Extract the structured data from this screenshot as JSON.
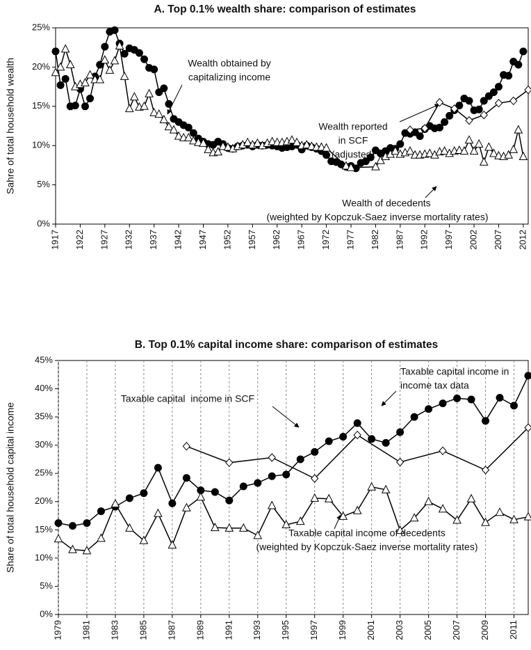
{
  "chart_data": [
    {
      "type": "line",
      "title": "A. Top 0.1% wealth share: comparison of estimates",
      "ylabel": "Sahre of total household wealth",
      "grid": false,
      "xlim": [
        1917,
        2013
      ],
      "xticks": [
        1917,
        1922,
        1927,
        1932,
        1937,
        1942,
        1947,
        1952,
        1957,
        1962,
        1967,
        1972,
        1977,
        1982,
        1987,
        1992,
        1997,
        2002,
        2007,
        2012
      ],
      "ylim": [
        0,
        25
      ],
      "yticks": [
        {
          "value": 0,
          "label": "0%"
        },
        {
          "value": 5,
          "label": "5%"
        },
        {
          "value": 10,
          "label": "10%"
        },
        {
          "value": 15,
          "label": "15%"
        },
        {
          "value": 20,
          "label": "20%"
        },
        {
          "value": 25,
          "label": "25%"
        }
      ],
      "annotations": [
        [
          "Wealth obtained by",
          "capitalizing income"
        ],
        [
          "Wealth reported",
          "in SCF",
          "(adjusted)"
        ],
        [
          "Wealth of decedents",
          "(weighted by Kopczuk-Saez inverse mortality rates)"
        ]
      ],
      "series": [
        {
          "marker": "circle",
          "color": "#000000",
          "x": [
            1917,
            1918,
            1919,
            1920,
            1921,
            1922,
            1923,
            1924,
            1925,
            1926,
            1927,
            1928,
            1929,
            1930,
            1931,
            1932,
            1933,
            1934,
            1935,
            1936,
            1937,
            1938,
            1939,
            1940,
            1941,
            1942,
            1943,
            1944,
            1945,
            1946,
            1947,
            1948,
            1949,
            1950,
            1951,
            1952,
            1953,
            1954,
            1955,
            1956,
            1957,
            1958,
            1959,
            1960,
            1961,
            1962,
            1963,
            1964,
            1965,
            1966,
            1967,
            1968,
            1969,
            1970,
            1971,
            1972,
            1973,
            1974,
            1975,
            1976,
            1977,
            1978,
            1979,
            1980,
            1981,
            1982,
            1983,
            1984,
            1985,
            1986,
            1987,
            1988,
            1989,
            1990,
            1991,
            1992,
            1993,
            1994,
            1995,
            1996,
            1997,
            1998,
            1999,
            2000,
            2001,
            2002,
            2003,
            2004,
            2005,
            2006,
            2007,
            2008,
            2009,
            2010,
            2011,
            2012
          ],
          "values": [
            22,
            17.7,
            18.5,
            15,
            15.1,
            17.2,
            15,
            16,
            18.8,
            20.3,
            22.6,
            24.5,
            24.7,
            23,
            21.7,
            22.4,
            22.2,
            21.8,
            21,
            19.9,
            19.7,
            16.8,
            17.3,
            15.3,
            13.4,
            13,
            12.6,
            12.3,
            11.6,
            10.9,
            10.5,
            10.2,
            10.1,
            10.5,
            10.2,
            9.7,
            9.6,
            9.9,
            10,
            10.1,
            9.9,
            10.1,
            10,
            10.1,
            10,
            9.9,
            9.7,
            9.8,
            9.9,
            10.1,
            9.5,
            10,
            9.8,
            9.6,
            9.3,
            8.8,
            8,
            7.9,
            7.6,
            7.3,
            7.4,
            7.1,
            7.8,
            8,
            8.5,
            9.4,
            9,
            9.3,
            9.7,
            9.6,
            10.2,
            11.6,
            11.5,
            11.7,
            11.2,
            12.1,
            12.5,
            12.2,
            12.3,
            13,
            13.8,
            14.5,
            15.1,
            16,
            15.7,
            14.5,
            14.6,
            15.7,
            16.3,
            16.8,
            17.5,
            19,
            18.9,
            20.7,
            20.3,
            22
          ]
        },
        {
          "marker": "triangle",
          "color": "#000000",
          "x": [
            1917,
            1918,
            1919,
            1920,
            1921,
            1922,
            1923,
            1924,
            1925,
            1926,
            1927,
            1928,
            1929,
            1930,
            1931,
            1932,
            1933,
            1934,
            1935,
            1936,
            1937,
            1938,
            1939,
            1940,
            1941,
            1942,
            1943,
            1944,
            1945,
            1946,
            1947,
            1948,
            1949,
            1950,
            1951,
            1952,
            1953,
            1954,
            1955,
            1956,
            1957,
            1958,
            1959,
            1960,
            1961,
            1962,
            1963,
            1964,
            1965,
            1966,
            1967,
            1968,
            1969,
            1970,
            1971,
            1972,
            1976,
            1977,
            1982,
            1983,
            1984,
            1985,
            1986,
            1987,
            1988,
            1989,
            1990,
            1991,
            1992,
            1993,
            1994,
            1995,
            1996,
            1997,
            1998,
            1999,
            2000,
            2001,
            2002,
            2003,
            2004,
            2005,
            2006,
            2007,
            2008,
            2009,
            2010,
            2011,
            2012
          ],
          "values": [
            19.3,
            20,
            22.3,
            20.3,
            17.5,
            17.8,
            18,
            19,
            18.4,
            18.4,
            20.9,
            19.6,
            20.8,
            22.7,
            18.8,
            14.7,
            16.2,
            14.9,
            15,
            16.6,
            14.2,
            14,
            13.3,
            12.4,
            12,
            11.2,
            11,
            11,
            10.6,
            10.4,
            10.3,
            9.5,
            9.1,
            9.2,
            9.9,
            9.8,
            9.6,
            9.9,
            10.1,
            10.4,
            10.1,
            10.3,
            10,
            10.3,
            10.5,
            10.4,
            10.4,
            10.5,
            10.7,
            10.4,
            10,
            10.1,
            9.9,
            9.8,
            9.8,
            9.7,
            7.4,
            7.2,
            7.3,
            8.1,
            8.6,
            8.9,
            9.3,
            8.9,
            9.1,
            9.3,
            8.8,
            8.8,
            8.9,
            9,
            8.8,
            9.2,
            9.3,
            9,
            9.3,
            9.4,
            9.3,
            10.7,
            9.3,
            10.2,
            7.9,
            9.8,
            9,
            8.7,
            8.6,
            8.8,
            9.5,
            12,
            8.6
          ]
        },
        {
          "marker": "diamond",
          "color": "#000000",
          "x": [
            1989,
            1992,
            1995,
            1998,
            2001,
            2004,
            2007,
            2010,
            2013
          ],
          "values": [
            12,
            12.2,
            15.5,
            14.7,
            13.2,
            13.9,
            15.4,
            15.7,
            17.1
          ]
        }
      ]
    },
    {
      "type": "line",
      "title": "B. Top 0.1% capital income share: comparison of estimates",
      "ylabel": "Share of total household capital income",
      "grid": "x",
      "xlim": [
        1979,
        2012
      ],
      "xticks": [
        1979,
        1981,
        1983,
        1985,
        1987,
        1989,
        1991,
        1993,
        1995,
        1997,
        1999,
        2001,
        2003,
        2005,
        2007,
        2009,
        2011
      ],
      "ylim": [
        0,
        45
      ],
      "yticks": [
        {
          "value": 0,
          "label": "0%"
        },
        {
          "value": 5,
          "label": "5%"
        },
        {
          "value": 10,
          "label": "10%"
        },
        {
          "value": 15,
          "label": "15%"
        },
        {
          "value": 20,
          "label": "20%"
        },
        {
          "value": 25,
          "label": "25%"
        },
        {
          "value": 30,
          "label": "30%"
        },
        {
          "value": 35,
          "label": "35%"
        },
        {
          "value": 40,
          "label": "40%"
        },
        {
          "value": 45,
          "label": "45%"
        }
      ],
      "annotations": [
        [
          "Taxable capital income in",
          "income tax data"
        ],
        [
          "Taxable capital  income in SCF"
        ],
        [
          "Taxable capital income of decedents",
          "(weighted by Kopczuk-Saez inverse mortality rates)"
        ]
      ],
      "series": [
        {
          "marker": "circle",
          "color": "#000000",
          "x": [
            1979,
            1980,
            1981,
            1982,
            1983,
            1984,
            1985,
            1986,
            1987,
            1988,
            1989,
            1990,
            1991,
            1992,
            1993,
            1994,
            1995,
            1996,
            1997,
            1998,
            1999,
            2000,
            2001,
            2002,
            2003,
            2004,
            2005,
            2006,
            2007,
            2008,
            2009,
            2010,
            2011,
            2012
          ],
          "values": [
            16.2,
            15.7,
            16.2,
            18.3,
            19.1,
            20.6,
            21.5,
            26,
            19.7,
            24.2,
            22,
            21.7,
            20.2,
            22.7,
            23.3,
            24.5,
            24.8,
            27.5,
            28.8,
            30.7,
            31.5,
            33.9,
            31.1,
            30.4,
            32.3,
            35,
            36.4,
            37.4,
            38.3,
            38.1,
            34.3,
            38.4,
            37,
            42.3
          ]
        },
        {
          "marker": "triangle",
          "color": "#000000",
          "x": [
            1979,
            1980,
            1981,
            1982,
            1983,
            1984,
            1985,
            1986,
            1987,
            1988,
            1989,
            1990,
            1991,
            1992,
            1993,
            1994,
            1995,
            1996,
            1997,
            1998,
            1999,
            2000,
            2001,
            2002,
            2003,
            2004,
            2005,
            2006,
            2007,
            2008,
            2009,
            2010,
            2011,
            2012
          ],
          "values": [
            13.4,
            11.5,
            11.3,
            13.5,
            19.6,
            15.3,
            13.1,
            17.9,
            12.3,
            18.9,
            20.8,
            15.4,
            15.3,
            15.3,
            14,
            19.3,
            15.9,
            16.5,
            20.6,
            20.5,
            17.4,
            18.4,
            22.6,
            22.1,
            14.9,
            17.1,
            20,
            18.7,
            16.7,
            20.5,
            16.3,
            18.1,
            16.8,
            17.3
          ]
        },
        {
          "marker": "diamond",
          "color": "#000000",
          "x": [
            1988,
            1991,
            1994,
            1997,
            2000,
            2003,
            2006,
            2009,
            2012
          ],
          "values": [
            29.8,
            26.9,
            27.8,
            24.1,
            31.8,
            27,
            29,
            25.6,
            33.1
          ]
        }
      ]
    }
  ]
}
